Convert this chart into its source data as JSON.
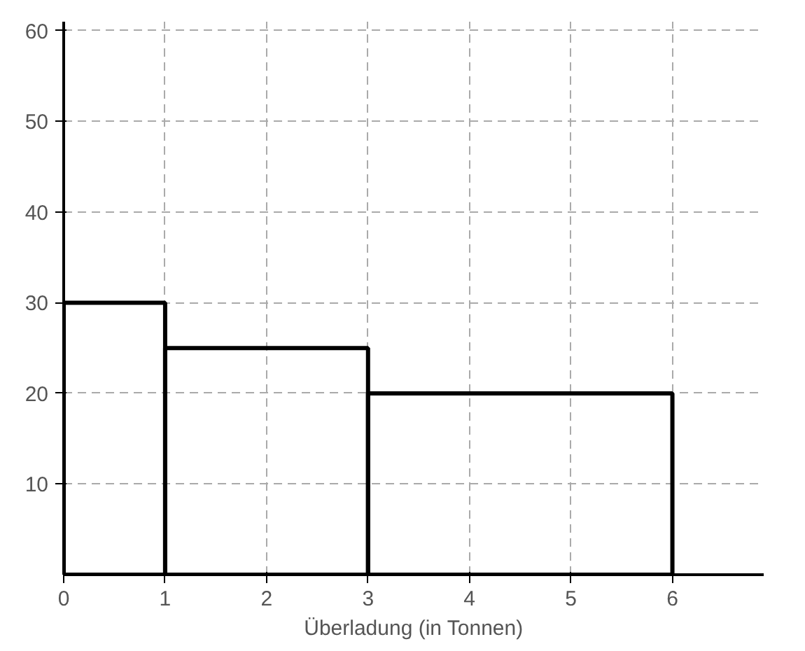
{
  "chart_data": {
    "type": "histogram",
    "xlabel": "Überladung (in Tonnen)",
    "bins": [
      0,
      1,
      3,
      6
    ],
    "values": [
      30,
      25,
      20
    ],
    "color": "#000000",
    "xlim": [
      0,
      6.9
    ],
    "ylim": [
      0,
      61
    ],
    "xticks": [
      0,
      1,
      2,
      3,
      4,
      5,
      6
    ],
    "yticks": [
      10,
      20,
      30,
      40,
      50,
      60
    ],
    "grid": true
  }
}
